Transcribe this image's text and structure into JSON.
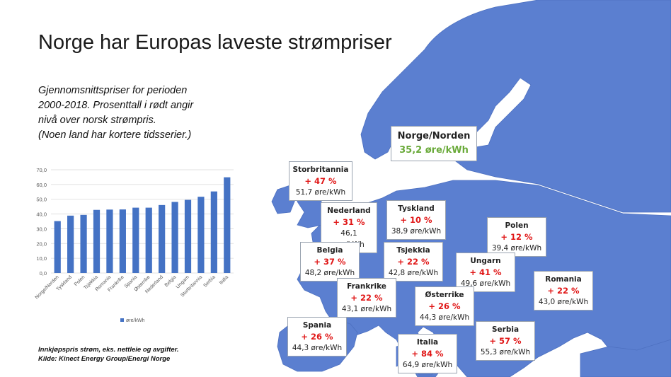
{
  "title": "Norge har Europas laveste strømpriser",
  "subtitle_lines": [
    "Gjennomsnittspriser for perioden",
    "2000-2018. Prosenttall i rødt angir",
    "nivå over norsk strømpris.",
    "(Noen land har kortere tidsserier.)"
  ],
  "footnote_lines": [
    "Innkjøpspris strøm, eks. nettleie og avgifter.",
    "Kilde: Kinect Energy Group/Energi Norge"
  ],
  "colors": {
    "bar": "#4472c4",
    "map": "#5b7fd0",
    "positive": "#e01515",
    "norway": "#6aaa3a"
  },
  "chart_data": {
    "type": "bar",
    "categories": [
      "Norge/Norden",
      "Tyskland",
      "Polen",
      "Tsjekkia",
      "Romania",
      "Frankrike",
      "Spania",
      "Østerrike",
      "Nederland",
      "Belgia",
      "Ungarn",
      "Storbritannia",
      "Serbia",
      "Italia"
    ],
    "series": [
      {
        "name": "øre/kWh",
        "values": [
          35.2,
          38.9,
          39.4,
          42.8,
          43.0,
          43.1,
          44.3,
          44.3,
          46.1,
          48.2,
          49.6,
          51.7,
          55.3,
          64.9
        ]
      }
    ],
    "ylim": [
      0,
      70
    ],
    "yticks": [
      "0,0",
      "10,0",
      "20,0",
      "30,0",
      "40,0",
      "50,0",
      "60,0",
      "70,0"
    ],
    "grid": true,
    "legend": "bottom"
  },
  "callouts": {
    "norge": {
      "name": "Norge/Norden",
      "price": "35,2 øre/kWh"
    },
    "storbritannia": {
      "name": "Storbritannia",
      "pct": "+ 47 %",
      "price": "51,7 øre/kWh"
    },
    "nederland": {
      "name": "Nederland",
      "pct": "+ 31 %",
      "price": "46,1 øre/kWh"
    },
    "tyskland": {
      "name": "Tyskland",
      "pct": "+ 10 %",
      "price": "38,9 øre/kWh"
    },
    "polen": {
      "name": "Polen",
      "pct": "+ 12 %",
      "price": "39,4 øre/kWh"
    },
    "belgia": {
      "name": "Belgia",
      "pct": "+ 37 %",
      "price": "48,2 øre/kWh"
    },
    "tsjekkia": {
      "name": "Tsjekkia",
      "pct": "+ 22 %",
      "price": "42,8 øre/kWh"
    },
    "ungarn": {
      "name": "Ungarn",
      "pct": "+ 41 %",
      "price": "49,6 øre/kWh"
    },
    "romania": {
      "name": "Romania",
      "pct": "+ 22 %",
      "price": "43,0 øre/kWh"
    },
    "frankrike": {
      "name": "Frankrike",
      "pct": "+ 22 %",
      "price": "43,1 øre/kWh"
    },
    "osterrike": {
      "name": "Østerrike",
      "pct": "+ 26 %",
      "price": "44,3 øre/kWh"
    },
    "spania": {
      "name": "Spania",
      "pct": "+ 26 %",
      "price": "44,3 øre/kWh"
    },
    "serbia": {
      "name": "Serbia",
      "pct": "+ 57 %",
      "price": "55,3 øre/kWh"
    },
    "italia": {
      "name": "Italia",
      "pct": "+ 84 %",
      "price": "64,9 øre/kWh"
    }
  }
}
